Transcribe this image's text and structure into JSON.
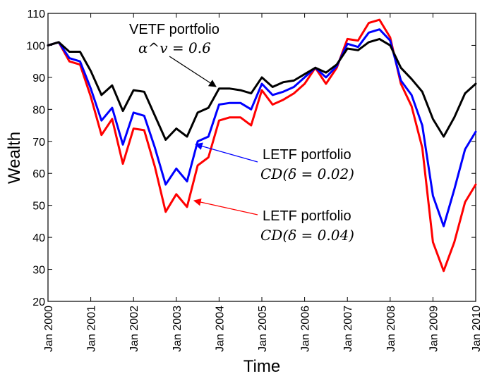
{
  "chart_data": {
    "type": "line",
    "title": "",
    "xlabel": "Time",
    "ylabel": "Wealth",
    "xlim": [
      2000,
      2010
    ],
    "ylim": [
      20,
      110
    ],
    "yticks": [
      20,
      30,
      40,
      50,
      60,
      70,
      80,
      90,
      100,
      110
    ],
    "xticks": [
      {
        "value": 2000,
        "label": "Jan 2000"
      },
      {
        "value": 2001,
        "label": "Jan 2001"
      },
      {
        "value": 2002,
        "label": "Jan 2002"
      },
      {
        "value": 2003,
        "label": "Jan 2003"
      },
      {
        "value": 2004,
        "label": "Jan 2004"
      },
      {
        "value": 2005,
        "label": "Jan 2005"
      },
      {
        "value": 2006,
        "label": "Jan 2006"
      },
      {
        "value": 2007,
        "label": "Jan 2007"
      },
      {
        "value": 2008,
        "label": "Jan 2008"
      },
      {
        "value": 2009,
        "label": "Jan 2009"
      },
      {
        "value": 2010,
        "label": "Jan 2010"
      }
    ],
    "grid": false,
    "x": [
      2000.0,
      2000.25,
      2000.5,
      2000.75,
      2001.0,
      2001.25,
      2001.5,
      2001.75,
      2002.0,
      2002.25,
      2002.5,
      2002.75,
      2003.0,
      2003.25,
      2003.5,
      2003.75,
      2004.0,
      2004.25,
      2004.5,
      2004.75,
      2005.0,
      2005.25,
      2005.5,
      2005.75,
      2006.0,
      2006.25,
      2006.5,
      2006.75,
      2007.0,
      2007.25,
      2007.5,
      2007.75,
      2008.0,
      2008.25,
      2008.5,
      2008.75,
      2009.0,
      2009.25,
      2009.5,
      2009.75,
      2010.0
    ],
    "series": [
      {
        "name": "VETF portfolio",
        "color": "#000000",
        "values": [
          100,
          101,
          98,
          98,
          92,
          84.5,
          87.5,
          79.5,
          86,
          85.5,
          78,
          70.5,
          74,
          71.5,
          79,
          80.5,
          86.5,
          86.5,
          86,
          85,
          90,
          87,
          88.5,
          89,
          91,
          93,
          91.5,
          94,
          99,
          98.5,
          101,
          102,
          100,
          93,
          89.5,
          85.5,
          77,
          71.5,
          77.5,
          85,
          88
        ]
      },
      {
        "name": "LETF portfolio CD(δ = 0.02)",
        "color": "#0000ff",
        "values": [
          100,
          101,
          96,
          95,
          86.5,
          76.5,
          80.5,
          69,
          79,
          78,
          68,
          56.5,
          61.5,
          57.5,
          70,
          71.5,
          81.5,
          82,
          82,
          80,
          88,
          84.5,
          85.5,
          87,
          90,
          93,
          90,
          93.5,
          100.5,
          99.5,
          104,
          105,
          101.5,
          89,
          84.5,
          75,
          53,
          43.5,
          55,
          67.5,
          73
        ]
      },
      {
        "name": "LETF portfolio CD(δ = 0.04)",
        "color": "#ff0000",
        "values": [
          100,
          101,
          95,
          94,
          84,
          72,
          77,
          63,
          74,
          73.5,
          62,
          48,
          53.5,
          49.5,
          62.5,
          65,
          76.5,
          77.5,
          77.5,
          75,
          86,
          81.5,
          83,
          85,
          88,
          93,
          88,
          93,
          102,
          101.5,
          107,
          108,
          102.5,
          88,
          81,
          68,
          38.5,
          29.5,
          38.5,
          51,
          56.5
        ]
      }
    ],
    "annotations": [
      {
        "title": "VETF portfolio",
        "subtitle": "α^v = 0.6",
        "points_to": {
          "x": 2004.0,
          "y": 86.5
        },
        "color": "#000000"
      },
      {
        "title": "LETF portfolio",
        "subtitle": "CD(δ = 0.02)",
        "points_to": {
          "x": 2003.5,
          "y": 68.5
        },
        "color": "#0000ff"
      },
      {
        "title": "LETF portfolio",
        "subtitle": "CD(δ = 0.04)",
        "points_to": {
          "x": 2003.5,
          "y": 51
        },
        "color": "#ff0000"
      }
    ]
  }
}
